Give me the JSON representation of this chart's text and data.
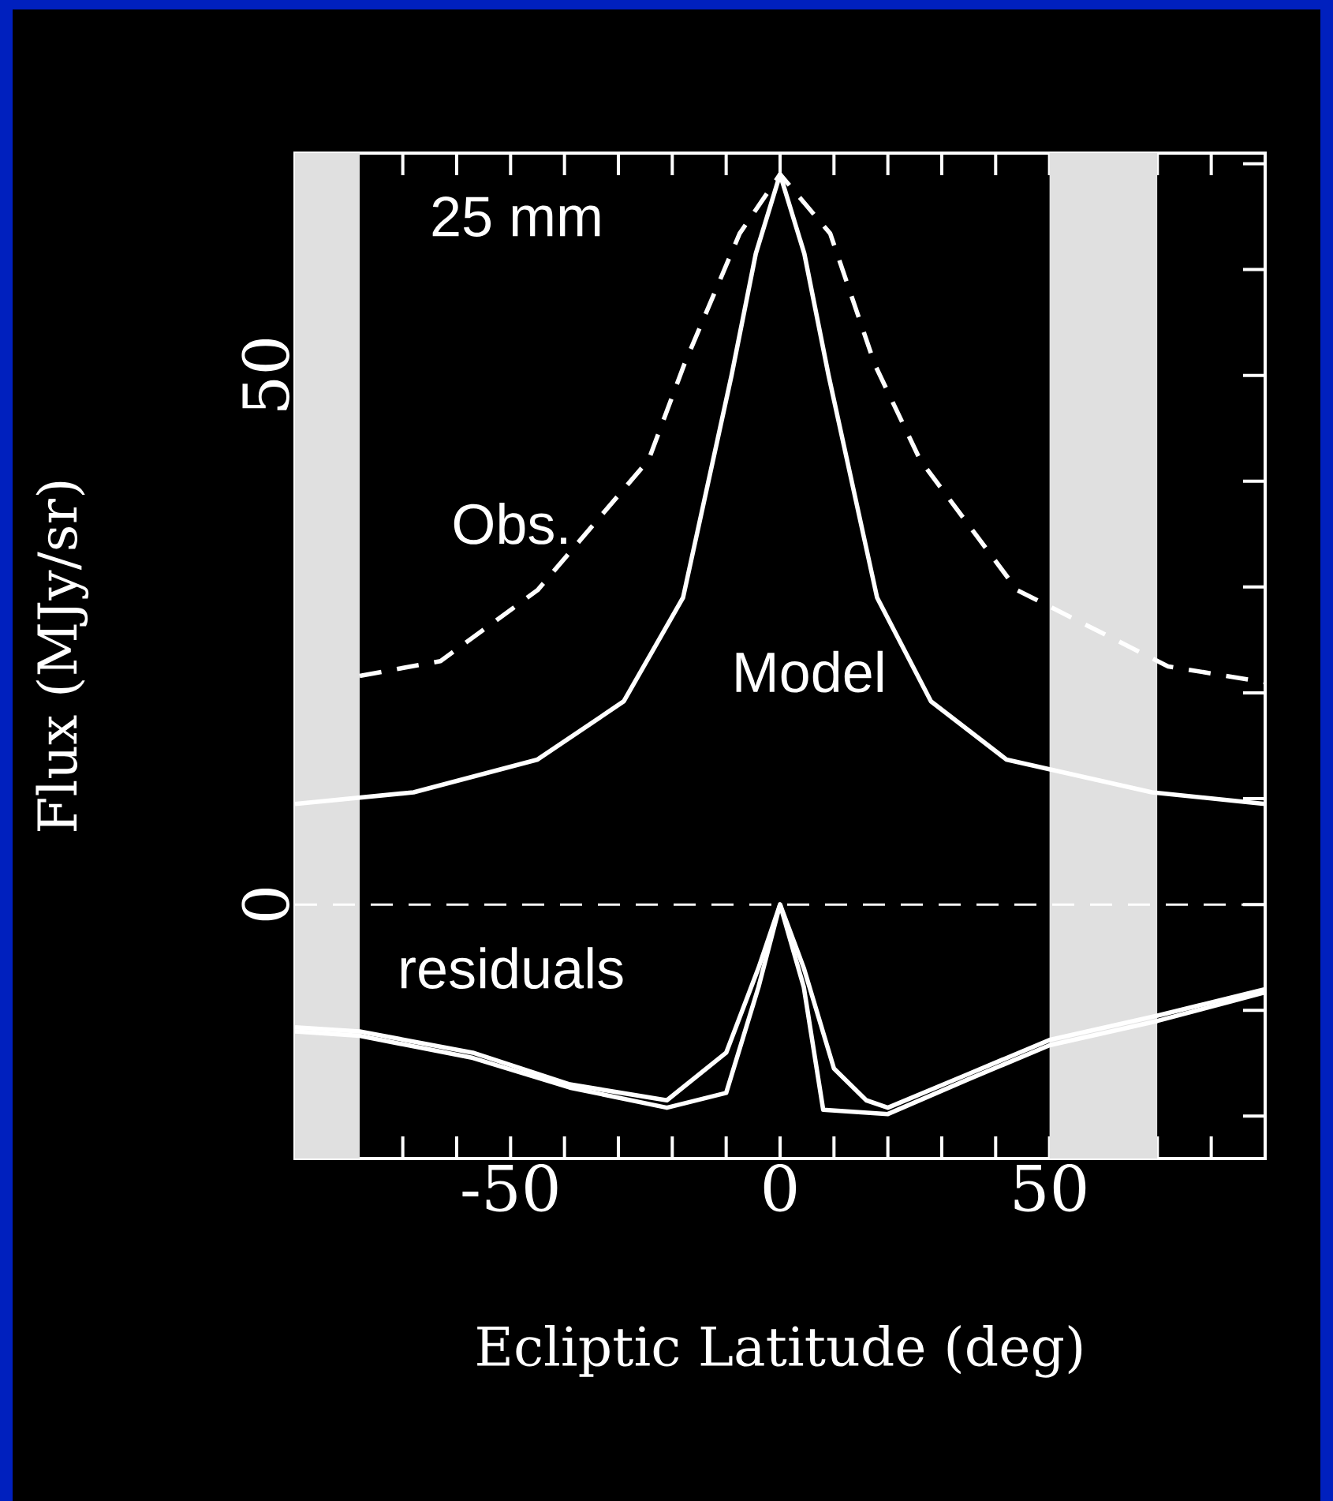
{
  "chart_data": {
    "type": "line",
    "xlabel": "Ecliptic Latitude (deg)",
    "ylabel": "Flux (MJy/sr)",
    "annotations": [
      "25 mm"
    ],
    "xlim": [
      -90,
      90
    ],
    "ylim": [
      -24,
      71
    ],
    "xticks": [
      {
        "value": -80,
        "label": null
      },
      {
        "value": -70,
        "label": null
      },
      {
        "value": -60,
        "label": null
      },
      -50,
      {
        "value": -40,
        "label": null
      },
      {
        "value": -30,
        "label": null
      },
      {
        "value": -20,
        "label": null
      },
      {
        "value": -10,
        "label": null
      },
      0,
      {
        "value": 10,
        "label": null
      },
      {
        "value": 20,
        "label": null
      },
      {
        "value": 30,
        "label": null
      },
      {
        "value": 40,
        "label": null
      },
      50,
      {
        "value": 60,
        "label": null
      },
      {
        "value": 70,
        "label": null
      },
      {
        "value": 80,
        "label": null
      }
    ],
    "yticks": [
      {
        "value": -20,
        "label": null
      },
      {
        "value": -10,
        "label": null
      },
      0,
      {
        "value": 10,
        "label": null
      },
      {
        "value": 20,
        "label": null
      },
      {
        "value": 30,
        "label": null
      },
      {
        "value": 40,
        "label": null
      },
      50,
      {
        "value": 60,
        "label": null
      },
      {
        "value": 70,
        "label": null
      }
    ],
    "bands": [
      {
        "axis": "x",
        "from": -90,
        "to": -78,
        "color": "#e0e0e0"
      },
      {
        "axis": "x",
        "from": 50,
        "to": 70,
        "color": "#e0e0e0"
      }
    ],
    "ref_lines": [
      {
        "axis": "y",
        "value": 0,
        "color": "#ffffff",
        "line_style": "dashed"
      }
    ],
    "series": [
      {
        "name": "Obs.",
        "color": "#ffffff",
        "line_style": "dashed",
        "x": [
          -78,
          -63,
          -45,
          -24.4,
          -17.8,
          -7.5,
          0,
          9.3,
          17.6,
          26,
          44,
          72,
          90
        ],
        "values": [
          21.6,
          23,
          29.7,
          42,
          51,
          63.4,
          69,
          63.4,
          51,
          42,
          29.7,
          22.5,
          21
        ]
      },
      {
        "name": "Model",
        "color": "#ffffff",
        "line_style": "solid",
        "x": [
          -90,
          -68,
          -45,
          -29,
          -18,
          -9,
          -4.5,
          0,
          4.5,
          9,
          18,
          28,
          42,
          69,
          90
        ],
        "values": [
          9.5,
          10.6,
          13.7,
          19.2,
          29,
          50,
          61.5,
          69,
          61.5,
          50,
          29,
          19.2,
          13.7,
          10.6,
          9.5
        ]
      },
      {
        "name": "residuals",
        "color": "#ffffff",
        "line_style": "solid",
        "x": [
          -90,
          -78,
          -57,
          -39,
          -21,
          -10,
          -4,
          0,
          4.4,
          8,
          20,
          35,
          50,
          70,
          90
        ],
        "values": [
          -12,
          -12.4,
          -14.5,
          -17.3,
          -19.2,
          -17.8,
          -7.8,
          0,
          -7.8,
          -19.4,
          -19.8,
          -16.5,
          -13.3,
          -11,
          -8.3
        ]
      },
      {
        "color": "#ffffff",
        "line_style": "solid",
        "x": [
          -90,
          -78,
          -57,
          -39,
          -21,
          -10,
          -4,
          0,
          4.4,
          10,
          16,
          20,
          35,
          50,
          70,
          90
        ],
        "values": [
          -11.6,
          -12,
          -14,
          -17,
          -18.5,
          -14,
          -6,
          0,
          -6,
          -15.5,
          -18.5,
          -19.2,
          -16,
          -12.8,
          -10.5,
          -8
        ]
      }
    ]
  }
}
